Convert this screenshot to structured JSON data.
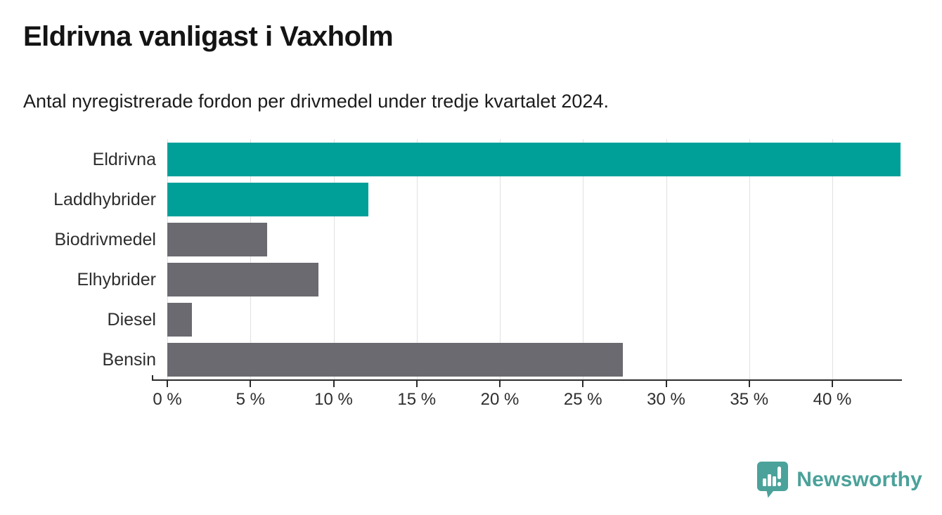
{
  "header": {
    "title": "Eldrivna vanligast i Vaxholm",
    "subtitle": "Antal nyregistrerade fordon per drivmedel under tredje kvartalet 2024."
  },
  "chart_data": {
    "type": "bar",
    "orientation": "horizontal",
    "title": "Eldrivna vanligast i Vaxholm",
    "subtitle": "Antal nyregistrerade fordon per drivmedel under tredje kvartalet 2024.",
    "categories": [
      "Eldrivna",
      "Laddhybrider",
      "Biodrivmedel",
      "Elhybrider",
      "Diesel",
      "Bensin"
    ],
    "values": [
      44.1,
      12.1,
      6.0,
      9.1,
      1.5,
      27.4
    ],
    "unit": "%",
    "xlim": [
      0,
      44.1
    ],
    "x_ticks": [
      0,
      5,
      10,
      15,
      20,
      25,
      30,
      35,
      40
    ],
    "tick_label_suffix": " %",
    "grid": true,
    "legend": "none",
    "bar_colors": [
      "#00a099",
      "#00a099",
      "#6b6a70",
      "#6b6a70",
      "#6b6a70",
      "#6b6a70"
    ],
    "colors": {
      "highlight": "#00a099",
      "default": "#6b6a70",
      "gridline": "#e0e0e0",
      "axis": "#2b2b2b",
      "text": "#2e2e2e"
    }
  },
  "branding": {
    "logo_text": "Newsworthy",
    "logo_color": "#4ba29a",
    "logo_icon": "speech-bubble-bar-chart-icon"
  }
}
